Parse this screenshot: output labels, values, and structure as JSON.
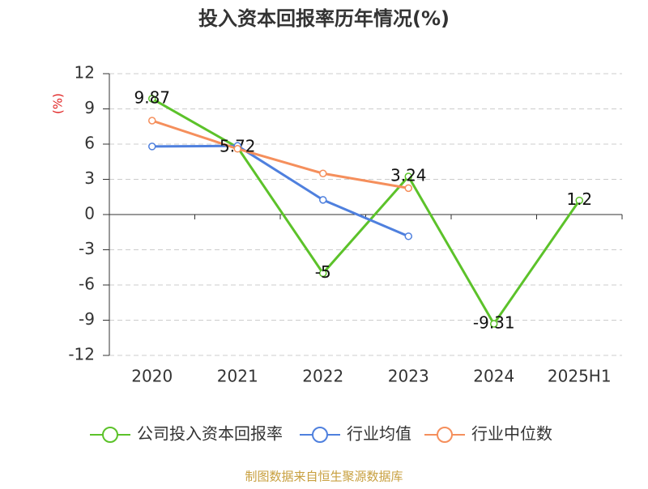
{
  "chart_data": {
    "type": "line",
    "title": "投入资本回报率历年情况(%)",
    "y_label": "(%)",
    "source": "制图数据来自恒生聚源数据库",
    "categories": [
      "2020",
      "2021",
      "2022",
      "2023",
      "2024",
      "2025H1"
    ],
    "series": [
      {
        "name": "公司投入资本回报率",
        "color": "#5cc22a",
        "values": [
          9.87,
          5.72,
          -5,
          3.24,
          -9.31,
          1.2
        ],
        "labels": true
      },
      {
        "name": "行业均值",
        "color": "#4f80de",
        "values": [
          5.8,
          5.85,
          1.25,
          -1.85,
          null,
          null
        ]
      },
      {
        "name": "行业中位数",
        "color": "#f58f5c",
        "values": [
          8.0,
          5.6,
          3.5,
          2.25,
          null,
          null
        ]
      }
    ],
    "ylim": [
      -12,
      12
    ],
    "yticks": [
      -12,
      -9,
      -6,
      -3,
      0,
      3,
      6,
      9,
      12
    ],
    "grid": true
  }
}
